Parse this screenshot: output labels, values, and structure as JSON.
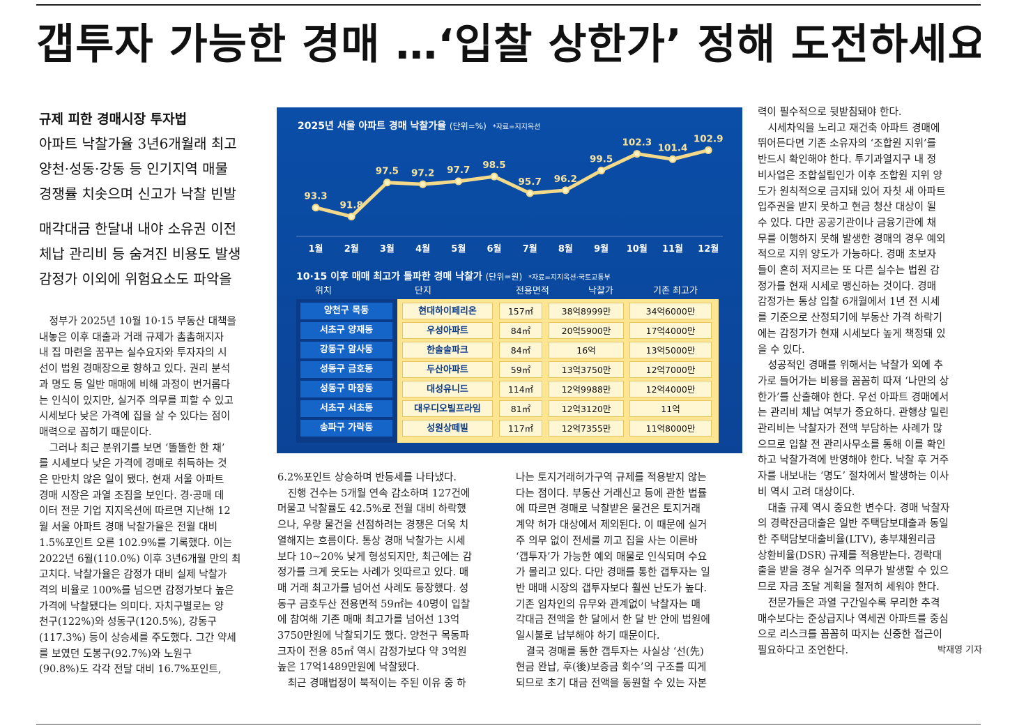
{
  "headline": "갭투자 가능한 경매 …‘입찰 상한가’ 정해 도전하세요",
  "subheads": {
    "kicker": "규제 피한 경매시장 투자법",
    "group1": [
      "아파트 낙찰가율 3년6개월래 최고",
      "양천·성동·강동 등 인기지역 매물",
      "경쟁률 치솟으며 신고가 낙찰 빈발"
    ],
    "group2": [
      "매각대금 한달내 내야 소유권 이전",
      "체납 관리비 등 숨겨진 비용도 발생",
      "감정가 이외에 위험요소도 파악을"
    ]
  },
  "chart": {
    "title": "2025년 서울 아파트 경매 낙찰가율",
    "unit": "(단위=%)",
    "source": "*자료=지지옥션",
    "colors": {
      "background": "#0b4a9e",
      "line": "#f3d98a",
      "text": "#ffffff"
    }
  },
  "chart_data": {
    "type": "line",
    "title": "2025년 서울 아파트 경매 낙찰가율",
    "categories": [
      "1월",
      "2월",
      "3월",
      "4월",
      "5월",
      "6월",
      "7월",
      "8월",
      "9월",
      "10월",
      "11월",
      "12월"
    ],
    "values": [
      93.3,
      91.8,
      97.5,
      97.2,
      97.7,
      98.5,
      95.7,
      96.2,
      99.5,
      102.3,
      101.4,
      102.9
    ],
    "value_labels": [
      "93.3",
      "91.8",
      "97.5",
      "97.2",
      "97.7",
      "98.5",
      "95.7",
      "96.2",
      "99.5",
      "102.3",
      "101.4",
      "102.9"
    ],
    "ylim": [
      90,
      104
    ],
    "grid": false,
    "legend": "none"
  },
  "table": {
    "title": "10·15 이후 매매 최고가 돌파한 경매 낙찰가",
    "unit": "(단위=원)",
    "source": "*자료=지지옥션·국토교통부",
    "headers": [
      "위치",
      "단지",
      "전용면적",
      "낙찰가",
      "기존 최고가"
    ],
    "rows": [
      [
        "양천구 목동",
        "현대하이페리온",
        "157㎡",
        "38억8999만",
        "34억6000만"
      ],
      [
        "서초구 양재동",
        "우성아파트",
        "84㎡",
        "20억5900만",
        "17억4000만"
      ],
      [
        "강동구 암사동",
        "한솔솔파크",
        "84㎡",
        "16억",
        "13억5000만"
      ],
      [
        "성동구 금호동",
        "두산아파트",
        "59㎡",
        "13억3750만",
        "12억7000만"
      ],
      [
        "성동구 마장동",
        "대성유니드",
        "114㎡",
        "12억9988만",
        "12억4000만"
      ],
      [
        "서초구 서초동",
        "대우디오빌프라임",
        "81㎡",
        "12억3120만",
        "11억"
      ],
      [
        "송파구 가락동",
        "성원상떼빌",
        "117㎡",
        "12억7355만",
        "11억8000만"
      ]
    ]
  },
  "body": {
    "col1": [
      "　정부가 2025년 10월 10·15 부동산 대책을",
      "내놓은 이후 대출과 거래 규제가 촘촘해지자",
      "내 집 마련을 꿈꾸는 실수요자와 투자자의 시",
      "선이 법원 경매장으로 향하고 있다. 권리 분석",
      "과 명도 등 일반 매매에 비해 과정이 번거롭다",
      "는 인식이 있지만, 실거주 의무를 피할 수 있고",
      "시세보다 낮은 가격에 집을 살 수 있다는 점이",
      "매력으로 꼽히기 때문이다.",
      "　그러나 최근 분위기를 보면 ‘똘똘한 한 채’",
      "를 시세보다 낮은 가격에 경매로 취득하는 것",
      "은 만만치 않은 일이 됐다. 현재 서울 아파트",
      "경매 시장은 과열 조짐을 보인다. 경·공매 데",
      "이터 전문 기업 지지옥션에 따르면 지난해 12",
      "월 서울 아파트 경매 낙찰가율은 전월 대비",
      "1.5%포인트 오른 102.9%를 기록했다. 이는",
      "2022년 6월(110.0%) 이후 3년6개월 만의 최",
      "고치다. 낙찰가율은 감정가 대비 실제 낙찰가",
      "격의 비율로 100%를 넘으면 감정가보다 높은",
      "가격에 낙찰됐다는 의미다. 자치구별로는 양",
      "천구(122%)와 성동구(120.5%), 강동구",
      "(117.3%) 등이 상승세를 주도했다. 그간 약세",
      "를 보였던 도봉구(92.7%)와 노원구",
      "(90.8%)도 각각 전달 대비 16.7%포인트,"
    ],
    "col2": [
      "6.2%포인트 상승하며 반등세를 나타냈다.",
      "　진행 건수는 5개월 연속 감소하며 127건에",
      "머물고 낙찰률도 42.5%로 전월 대비 하락했",
      "으나, 우량 물건을 선점하려는 경쟁은 더욱 치",
      "열해지는 흐름이다. 통상 경매 낙찰가는 시세",
      "보다 10~20% 낮게 형성되지만, 최근에는 감",
      "정가를 크게 웃도는 사례가 잇따르고 있다. 매",
      "매 거래 최고가를 넘어선 사례도 등장했다. 성",
      "동구 금호두산 전용면적 59㎡는 40명이 입찰",
      "에 참여해 기존 매매 최고가를 넘어선 13억",
      "3750만원에 낙찰되기도 했다. 양천구 목동파",
      "크자이 전용 85㎡ 역시 감정가보다 약 3억원",
      "높은 17억1489만원에 낙찰됐다.",
      "　최근 경매법정이 북적이는 주된 이유 중 하"
    ],
    "col3": [
      "나는 토지거래허가구역 규제를 적용받지 않는",
      "다는 점이다. 부동산 거래신고 등에 관한 법률",
      "에 따르면 경매로 낙찰받은 물건은 토지거래",
      "계약 허가 대상에서 제외된다. 이 때문에 실거",
      "주 의무 없이 전세를 끼고 집을 사는 이른바",
      "‘갭투자’가 가능한 예외 매물로 인식되며 수요",
      "가 몰리고 있다. 다만 경매를 통한 갭투자는 일",
      "반 매매 시장의 갭투자보다 훨씬 난도가 높다.",
      "기존 임차인의 유무와 관계없이 낙찰자는 매",
      "각대금 전액을 한 달에서 한 달 반 안에 법원에",
      "일시불로 납부해야 하기 때문이다.",
      "　결국 경매를 통한 갭투자는 사실상 ‘선(先)",
      "현금 완납, 후(後)보증금 회수’의 구조를 띠게",
      "되므로 초기 대금 전액을 동원할 수 있는 자본"
    ],
    "col4": [
      "력이 필수적으로 뒷받침돼야 한다.",
      "　시세차익을 노리고 재건축 아파트 경매에",
      "뛰어든다면 기존 소유자의 ‘조합원 지위’를",
      "반드시 확인해야 한다. 투기과열지구 내 정",
      "비사업은 조합설립인가 이후 조합원 지위 양",
      "도가 원칙적으로 금지돼 있어 자칫 새 아파트",
      "입주권을 받지 못하고 현금 청산 대상이 될",
      "수 있다. 다만 공공기관이나 금융기관에 채",
      "무를 이행하지 못해 발생한 경매의 경우 예외",
      "적으로 지위 양도가 가능하다. 경매 초보자",
      "들이 흔히 저지르는 또 다른 실수는 법원 감",
      "정가를 현재 시세로 맹신하는 것이다. 경매",
      "감정가는 통상 입찰 6개월에서 1년 전 시세",
      "를 기준으로 산정되기에 부동산 가격 하락기",
      "에는 감정가가 현재 시세보다 높게 책정돼 있",
      "을 수 있다.",
      "　성공적인 경매를 위해서는 낙찰가 외에 추",
      "가로 들어가는 비용을 꼼꼼히 따져 ‘나만의 상",
      "한가’를 산출해야 한다. 우선 아파트 경매에서",
      "는 관리비 체납 여부가 중요하다. 관행상 밀린",
      "관리비는 낙찰자가 전액 부담하는 사례가 많",
      "으므로 입찰 전 관리사무소를 통해 이를 확인",
      "하고 낙찰가격에 반영해야 한다. 낙찰 후 거주",
      "자를 내보내는 ‘명도’ 절차에서 발생하는 이사",
      "비 역시 고려 대상이다.",
      "　대출 규제 역시 중요한 변수다. 경매 낙찰자",
      "의 경락잔금대출은 일반 주택담보대출과 동일",
      "한 주택담보대출비율(LTV), 총부채원리금",
      "상환비율(DSR) 규제를 적용받는다. 경락대",
      "출을 받을 경우 실거주 의무가 발생할 수 있으",
      "므로 자금 조달 계획을 철저히 세워야 한다.",
      "　전문가들은 과열 구간일수록 무리한 추격",
      "매수보다는 준상급지나 역세권 아파트를 중심",
      "으로 리스크를 꼼꼼히 따지는 신중한 접근이"
    ],
    "last_line": "필요하다고 조언한다.",
    "byline": "박재영 기자"
  }
}
